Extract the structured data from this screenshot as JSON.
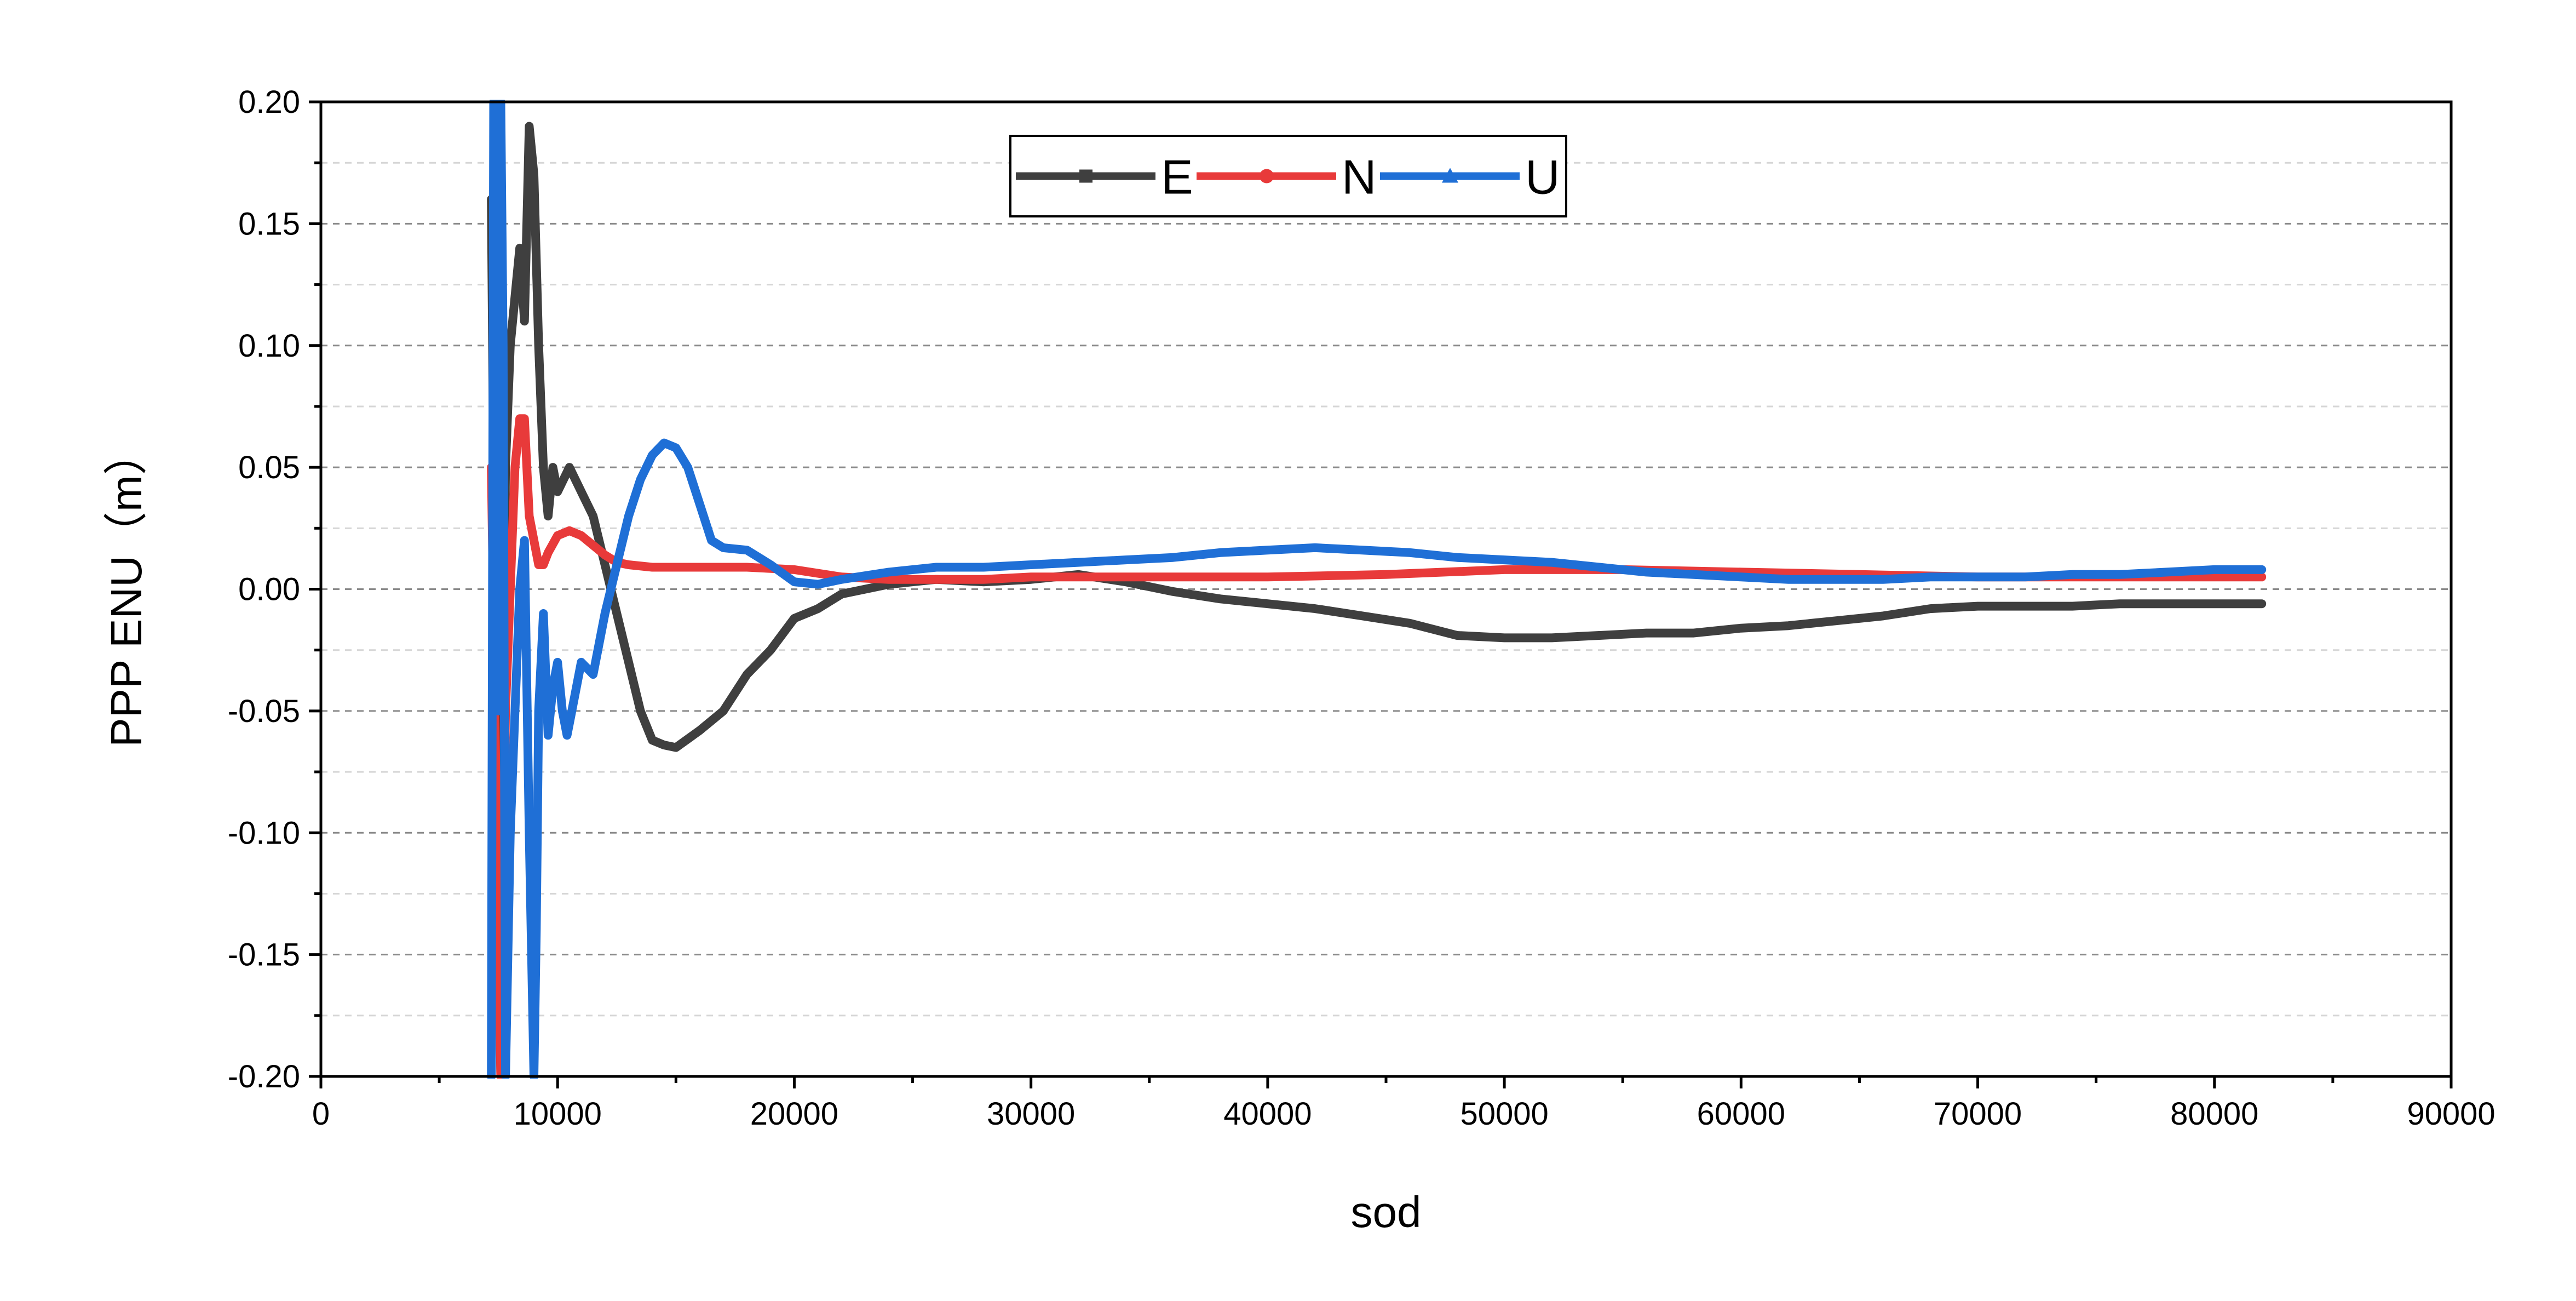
{
  "chart_data": {
    "type": "line",
    "xlabel": "sod",
    "ylabel": "PPP ENU（m）",
    "xlim": [
      0,
      90000
    ],
    "ylim": [
      -0.2,
      0.2
    ],
    "xticks": [
      0,
      10000,
      20000,
      30000,
      40000,
      50000,
      60000,
      70000,
      80000,
      90000
    ],
    "xtick_labels": [
      "0",
      "10000",
      "20000",
      "30000",
      "40000",
      "50000",
      "60000",
      "70000",
      "80000",
      "90000"
    ],
    "yticks": [
      -0.2,
      -0.15,
      -0.1,
      -0.05,
      0.0,
      0.05,
      0.1,
      0.15,
      0.2
    ],
    "ytick_labels": [
      "-0.20",
      "-0.15",
      "-0.10",
      "-0.05",
      "0.00",
      "0.05",
      "0.10",
      "0.15",
      "0.20"
    ],
    "grid": true,
    "legend_position": "top-center",
    "series": [
      {
        "name": "E",
        "color": "#3f3f3f",
        "marker": "square",
        "x": [
          7200,
          7400,
          7600,
          7800,
          8000,
          8200,
          8400,
          8600,
          8800,
          9000,
          9200,
          9400,
          9600,
          9800,
          10000,
          10500,
          11000,
          11500,
          12000,
          12500,
          13000,
          13500,
          14000,
          14500,
          15000,
          16000,
          17000,
          18000,
          19000,
          20000,
          21000,
          22000,
          24000,
          26000,
          28000,
          30000,
          32000,
          34000,
          36000,
          38000,
          40000,
          42000,
          44000,
          46000,
          48000,
          50000,
          52000,
          54000,
          56000,
          58000,
          60000,
          62000,
          64000,
          66000,
          68000,
          70000,
          72000,
          74000,
          76000,
          78000,
          80000,
          82000
        ],
        "y": [
          0.16,
          -0.07,
          -0.2,
          0.05,
          0.1,
          0.12,
          0.14,
          0.11,
          0.19,
          0.17,
          0.1,
          0.05,
          0.03,
          0.05,
          0.04,
          0.05,
          0.04,
          0.03,
          0.01,
          -0.01,
          -0.03,
          -0.05,
          -0.062,
          -0.064,
          -0.065,
          -0.058,
          -0.05,
          -0.035,
          -0.025,
          -0.012,
          -0.008,
          -0.002,
          0.002,
          0.004,
          0.003,
          0.004,
          0.006,
          0.003,
          -0.001,
          -0.004,
          -0.006,
          -0.008,
          -0.011,
          -0.014,
          -0.019,
          -0.02,
          -0.02,
          -0.019,
          -0.018,
          -0.018,
          -0.016,
          -0.015,
          -0.013,
          -0.011,
          -0.008,
          -0.007,
          -0.007,
          -0.007,
          -0.006,
          -0.006,
          -0.006,
          -0.006
        ]
      },
      {
        "name": "N",
        "color": "#e83a3a",
        "marker": "circle",
        "x": [
          7200,
          7400,
          7600,
          7800,
          8000,
          8200,
          8400,
          8600,
          8800,
          9000,
          9200,
          9400,
          9600,
          10000,
          10500,
          11000,
          11500,
          12000,
          12500,
          13000,
          14000,
          16000,
          18000,
          20000,
          22000,
          24000,
          26000,
          28000,
          30000,
          35000,
          40000,
          45000,
          50000,
          55000,
          60000,
          65000,
          70000,
          75000,
          80000,
          82000
        ],
        "y": [
          0.05,
          -0.08,
          -0.2,
          -0.05,
          0.0,
          0.05,
          0.07,
          0.07,
          0.03,
          0.02,
          0.01,
          0.01,
          0.015,
          0.022,
          0.024,
          0.022,
          0.018,
          0.014,
          0.011,
          0.01,
          0.009,
          0.009,
          0.009,
          0.008,
          0.005,
          0.004,
          0.004,
          0.004,
          0.005,
          0.005,
          0.005,
          0.006,
          0.008,
          0.008,
          0.007,
          0.006,
          0.005,
          0.005,
          0.005,
          0.005
        ]
      },
      {
        "name": "U",
        "color": "#1f6fd6",
        "marker": "triangle",
        "x": [
          7200,
          7300,
          7400,
          7500,
          7600,
          7700,
          7800,
          8000,
          8200,
          8400,
          8600,
          8800,
          9000,
          9100,
          9200,
          9400,
          9600,
          9800,
          10000,
          10200,
          10400,
          10600,
          10800,
          11000,
          11500,
          12000,
          12500,
          13000,
          13500,
          14000,
          14500,
          15000,
          15500,
          16000,
          16500,
          17000,
          18000,
          19000,
          20000,
          21000,
          22000,
          24000,
          26000,
          28000,
          30000,
          32000,
          34000,
          36000,
          38000,
          40000,
          42000,
          44000,
          46000,
          48000,
          50000,
          52000,
          54000,
          56000,
          58000,
          60000,
          62000,
          64000,
          66000,
          68000,
          70000,
          72000,
          74000,
          76000,
          78000,
          80000,
          82000
        ],
        "y": [
          -0.2,
          0.2,
          0.18,
          -0.05,
          0.2,
          0.1,
          -0.2,
          -0.1,
          -0.05,
          0.0,
          0.02,
          -0.1,
          -0.2,
          -0.14,
          -0.05,
          -0.01,
          -0.06,
          -0.04,
          -0.03,
          -0.05,
          -0.06,
          -0.05,
          -0.04,
          -0.03,
          -0.035,
          -0.01,
          0.01,
          0.03,
          0.045,
          0.055,
          0.06,
          0.058,
          0.05,
          0.035,
          0.02,
          0.017,
          0.016,
          0.01,
          0.003,
          0.002,
          0.004,
          0.007,
          0.009,
          0.009,
          0.01,
          0.011,
          0.012,
          0.013,
          0.015,
          0.016,
          0.017,
          0.016,
          0.015,
          0.013,
          0.012,
          0.011,
          0.009,
          0.007,
          0.006,
          0.005,
          0.004,
          0.004,
          0.004,
          0.005,
          0.005,
          0.005,
          0.006,
          0.006,
          0.007,
          0.008,
          0.008
        ]
      }
    ]
  }
}
